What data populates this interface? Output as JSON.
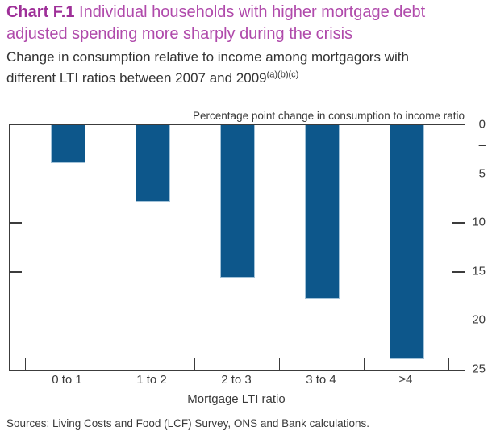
{
  "header": {
    "title_prefix": "Chart F.1",
    "title_rest": " Individual households with higher mortgage debt adjusted spending more sharply during the crisis",
    "subtitle": "Change in consumption relative to income among mortgagors with different LTI ratios between 2007 and 2009",
    "subtitle_superscript": "(a)(b)(c)"
  },
  "chart_data": {
    "type": "bar",
    "title": "Chart F.1 Individual households with higher mortgage debt adjusted spending more sharply during the crisis",
    "axis_top_label": "Percentage point change in consumption to income ratio",
    "categories": [
      "0 to 1",
      "1 to 2",
      "2 to 3",
      "3 to 4",
      "≥4"
    ],
    "values": [
      -3.9,
      -7.8,
      -15.6,
      -17.7,
      -23.9
    ],
    "xlabel": "Mortgage LTI ratio",
    "ylabel": "Percentage point change in consumption to income ratio",
    "y_axis_side": "right",
    "y_tick_labels": [
      "0",
      "5",
      "10",
      "15",
      "20",
      "25"
    ],
    "negative_marker": "–",
    "ylim": [
      0,
      25
    ],
    "axis_inverted": true,
    "grid": false,
    "legend": "none",
    "bar_color": "#0d578b",
    "bar_edge_color": "#a2c2d8",
    "axis_color": "#3c3c3c"
  },
  "footer": {
    "sources": "Sources: Living Costs and Food (LCF) Survey, ONS and Bank calculations."
  },
  "colors": {
    "title_bold": "#9e2f98",
    "title_regular": "#b04aab",
    "body_text": "#333333"
  }
}
